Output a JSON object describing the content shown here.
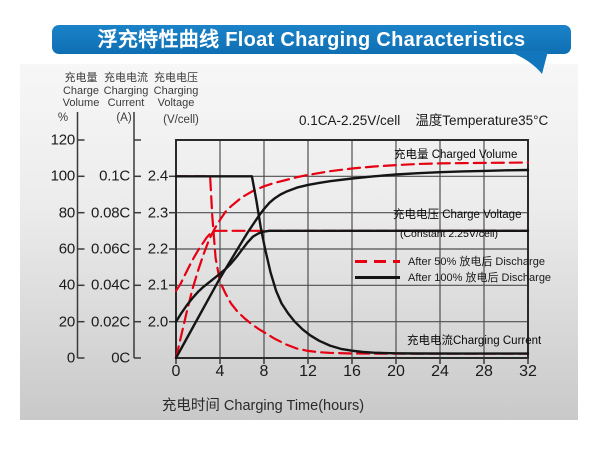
{
  "banner": {
    "title": "浮充特性曲线 Float Charging Characteristics"
  },
  "chart_data": {
    "type": "line",
    "title": "浮充特性曲线 Float Charging Characteristics",
    "condition": {
      "left": "0.1CA-2.25V/cell",
      "right": "温度Temperature35°C"
    },
    "xlabel": "充电时间 Charging Time(hours)",
    "xlim": [
      0,
      32
    ],
    "x_ticks": [
      "0",
      "4",
      "8",
      "12",
      "16",
      "20",
      "24",
      "28",
      "32"
    ],
    "grid": {
      "x_values": [
        4,
        8,
        12,
        16,
        20,
        24,
        28
      ],
      "voltage_lines": [
        2.0,
        2.1,
        2.2,
        2.3,
        2.4
      ]
    },
    "axes": {
      "volume": {
        "label_zh": "充电量",
        "label_en_1": "Charge",
        "label_en_2": "Volume",
        "unit": "%",
        "domain": [
          0,
          120
        ],
        "ticks": [
          "120",
          "100",
          "80",
          "60",
          "40",
          "20",
          "0"
        ]
      },
      "current": {
        "label_zh": "充电电流",
        "label_en_1": "Charging",
        "label_en_2": "Current",
        "unit": "(A)",
        "domain": [
          0,
          0.12
        ],
        "ticks": [
          "0.1C",
          "0.08C",
          "0.06C",
          "0.04C",
          "0.02C",
          "0C"
        ]
      },
      "voltage": {
        "label_zh": "充电电压",
        "label_en_1": "Charging",
        "label_en_2": "Voltage",
        "unit": "(V/cell)",
        "domain": [
          1.9,
          2.5
        ],
        "ticks": [
          "2.4",
          "2.3",
          "2.2",
          "2.1",
          "2.0"
        ]
      }
    },
    "annotations": {
      "charged_volume": "充电量 Charged Volume",
      "charge_voltage": "充电电压 Charge Voltage",
      "charge_voltage_sub": "(Constant 2.25V/cell)",
      "charging_current": "充电电流Charging Current"
    },
    "legend": [
      {
        "label": "After 50%  放电后 Discharge",
        "style": "dashed",
        "color": "#e60012"
      },
      {
        "label": "After 100%  放电后 Discharge",
        "style": "solid",
        "color": "#151515"
      }
    ],
    "colors": {
      "red": "#e60012",
      "black": "#151515",
      "grid": "#4f4f4f",
      "frame": "#2a2a2a",
      "axis": "#3a3a3a",
      "banner_blue": "#1377bd"
    },
    "series": [
      {
        "name": "charged-volume-after-50-discharge",
        "axis": "volume",
        "style": "dashed",
        "color": "#e60012",
        "points": [
          [
            0,
            0
          ],
          [
            0.5,
            13
          ],
          [
            1,
            26
          ],
          [
            1.5,
            38
          ],
          [
            2,
            48
          ],
          [
            2.5,
            57
          ],
          [
            3,
            65
          ],
          [
            3.5,
            71
          ],
          [
            4,
            76
          ],
          [
            4.5,
            80.5
          ],
          [
            5,
            83.5
          ],
          [
            6,
            88.5
          ],
          [
            7,
            92
          ],
          [
            8,
            94.5
          ],
          [
            9,
            96.5
          ],
          [
            10,
            98
          ],
          [
            11,
            99.5
          ],
          [
            12,
            100.8
          ],
          [
            14,
            102.8
          ],
          [
            16,
            104.3
          ],
          [
            18,
            105.4
          ],
          [
            20,
            106.2
          ],
          [
            22,
            106.8
          ],
          [
            24,
            107.1
          ],
          [
            26,
            107.3
          ],
          [
            28,
            107.4
          ],
          [
            30,
            107.5
          ],
          [
            32,
            107.6
          ]
        ]
      },
      {
        "name": "charge-voltage-after-50-discharge",
        "axis": "voltage",
        "style": "dashed",
        "color": "#e60012",
        "points": [
          [
            0,
            2.085
          ],
          [
            0.4,
            2.103
          ],
          [
            0.8,
            2.128
          ],
          [
            1.2,
            2.152
          ],
          [
            1.6,
            2.175
          ],
          [
            2,
            2.196
          ],
          [
            2.4,
            2.214
          ],
          [
            2.8,
            2.232
          ],
          [
            3.2,
            2.245
          ],
          [
            3.6,
            2.25
          ],
          [
            32,
            2.25
          ]
        ]
      },
      {
        "name": "charging-current-after-50-discharge",
        "axis": "current",
        "style": "dashed",
        "color": "#e60012",
        "points": [
          [
            0,
            0.1
          ],
          [
            3.1,
            0.1
          ],
          [
            3.3,
            0.078
          ],
          [
            3.6,
            0.055
          ],
          [
            4,
            0.042
          ],
          [
            4.5,
            0.0355
          ],
          [
            5,
            0.03
          ],
          [
            5.6,
            0.0255
          ],
          [
            6.2,
            0.022
          ],
          [
            6.8,
            0.019
          ],
          [
            7.5,
            0.016
          ],
          [
            8.2,
            0.0135
          ],
          [
            9,
            0.0105
          ],
          [
            10,
            0.0075
          ],
          [
            11,
            0.0052
          ],
          [
            12,
            0.0039
          ],
          [
            13,
            0.0032
          ],
          [
            14,
            0.0028
          ],
          [
            16,
            0.0025
          ],
          [
            18,
            0.0024
          ],
          [
            22,
            0.0024
          ],
          [
            27,
            0.0024
          ],
          [
            32,
            0.0024
          ]
        ]
      },
      {
        "name": "charged-volume-after-100-discharge",
        "axis": "volume",
        "style": "solid",
        "color": "#151515",
        "points": [
          [
            0,
            0
          ],
          [
            1,
            11
          ],
          [
            2,
            22
          ],
          [
            3,
            33
          ],
          [
            4,
            44
          ],
          [
            5,
            54
          ],
          [
            6,
            64
          ],
          [
            6.5,
            69
          ],
          [
            7,
            73.5
          ],
          [
            7.5,
            78
          ],
          [
            8,
            82
          ],
          [
            8.5,
            85.5
          ],
          [
            9,
            88
          ],
          [
            9.5,
            90
          ],
          [
            10,
            91.5
          ],
          [
            11,
            93.8
          ],
          [
            12,
            95.3
          ],
          [
            13,
            96.4
          ],
          [
            14,
            97.3
          ],
          [
            16,
            98.8
          ],
          [
            18,
            100
          ],
          [
            20,
            101
          ],
          [
            22,
            101.7
          ],
          [
            24,
            102.3
          ],
          [
            26,
            102.7
          ],
          [
            28,
            103
          ],
          [
            30,
            103.3
          ],
          [
            32,
            103.5
          ]
        ]
      },
      {
        "name": "charge-voltage-after-100-discharge",
        "axis": "voltage",
        "style": "solid",
        "color": "#151515",
        "points": [
          [
            0,
            2.0
          ],
          [
            0.5,
            2.024
          ],
          [
            1,
            2.046
          ],
          [
            1.5,
            2.065
          ],
          [
            2,
            2.082
          ],
          [
            2.5,
            2.096
          ],
          [
            3,
            2.108
          ],
          [
            3.5,
            2.12
          ],
          [
            4,
            2.132
          ],
          [
            4.5,
            2.145
          ],
          [
            5,
            2.16
          ],
          [
            5.5,
            2.178
          ],
          [
            6,
            2.198
          ],
          [
            6.5,
            2.218
          ],
          [
            7,
            2.234
          ],
          [
            7.5,
            2.243
          ],
          [
            8,
            2.248
          ],
          [
            8.5,
            2.25
          ],
          [
            32,
            2.25
          ]
        ]
      },
      {
        "name": "charging-current-after-100-discharge",
        "axis": "current",
        "style": "solid",
        "color": "#151515",
        "points": [
          [
            0,
            0.1
          ],
          [
            6.9,
            0.1
          ],
          [
            7.3,
            0.087
          ],
          [
            7.7,
            0.072
          ],
          [
            8.1,
            0.06
          ],
          [
            8.6,
            0.047
          ],
          [
            9.1,
            0.037
          ],
          [
            9.6,
            0.03
          ],
          [
            10.2,
            0.0245
          ],
          [
            10.8,
            0.02
          ],
          [
            11.5,
            0.0158
          ],
          [
            12.2,
            0.0125
          ],
          [
            13,
            0.0095
          ],
          [
            14,
            0.0068
          ],
          [
            15,
            0.005
          ],
          [
            16,
            0.004
          ],
          [
            17,
            0.0033
          ],
          [
            18,
            0.0029
          ],
          [
            19,
            0.0027
          ],
          [
            20,
            0.0026
          ],
          [
            22,
            0.0025
          ],
          [
            26,
            0.0024
          ],
          [
            32,
            0.0024
          ]
        ]
      }
    ]
  }
}
